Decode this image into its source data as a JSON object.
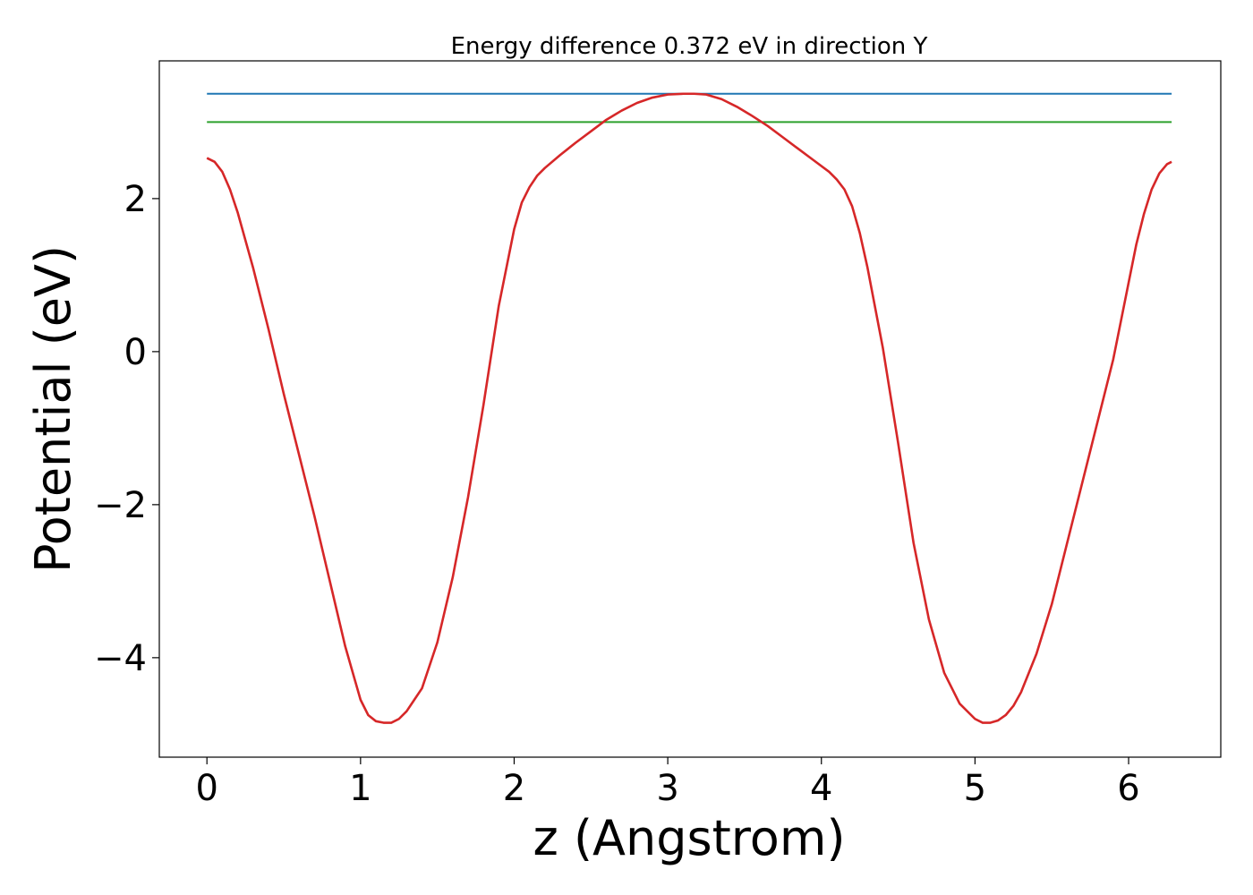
{
  "chart_data": {
    "type": "line",
    "title": "Energy difference 0.372 eV in direction Y",
    "xlabel": "z (Angstrom)",
    "ylabel": "Potential (eV)",
    "xlim": [
      -0.31,
      6.6
    ],
    "ylim": [
      -5.3,
      3.8
    ],
    "xticks": [
      0,
      1,
      2,
      3,
      4,
      5,
      6
    ],
    "yticks": [
      -4,
      -2,
      0,
      2
    ],
    "xtick_labels": [
      "0",
      "1",
      "2",
      "3",
      "4",
      "5",
      "6"
    ],
    "ytick_labels": [
      "−4",
      "−2",
      "0",
      "2"
    ],
    "grid": false,
    "series": [
      {
        "color": "#1f77b4",
        "x": [
          0,
          6.28
        ],
        "y": [
          3.37,
          3.37
        ]
      },
      {
        "color": "#2ca02c",
        "x": [
          0,
          6.28
        ],
        "y": [
          3.0,
          3.0
        ]
      },
      {
        "color": "#d62728",
        "x": [
          0.0,
          0.05,
          0.1,
          0.15,
          0.2,
          0.3,
          0.4,
          0.5,
          0.6,
          0.7,
          0.8,
          0.9,
          1.0,
          1.05,
          1.1,
          1.15,
          1.2,
          1.25,
          1.3,
          1.35,
          1.4,
          1.5,
          1.6,
          1.7,
          1.8,
          1.9,
          2.0,
          2.05,
          2.1,
          2.15,
          2.2,
          2.3,
          2.4,
          2.5,
          2.6,
          2.7,
          2.8,
          2.9,
          3.0,
          3.1,
          3.17,
          3.25,
          3.35,
          3.45,
          3.55,
          3.65,
          3.75,
          3.85,
          3.95,
          4.05,
          4.1,
          4.15,
          4.2,
          4.25,
          4.3,
          4.4,
          4.5,
          4.6,
          4.7,
          4.8,
          4.9,
          5.0,
          5.05,
          5.1,
          5.15,
          5.2,
          5.25,
          5.3,
          5.35,
          5.4,
          5.5,
          5.6,
          5.7,
          5.8,
          5.9,
          6.0,
          6.05,
          6.1,
          6.15,
          6.2,
          6.25,
          6.28
        ],
        "y": [
          2.53,
          2.48,
          2.35,
          2.12,
          1.82,
          1.1,
          0.3,
          -0.55,
          -1.35,
          -2.15,
          -3.0,
          -3.85,
          -4.55,
          -4.75,
          -4.83,
          -4.85,
          -4.85,
          -4.8,
          -4.7,
          -4.55,
          -4.4,
          -3.8,
          -2.95,
          -1.9,
          -0.7,
          0.6,
          1.6,
          1.95,
          2.15,
          2.3,
          2.4,
          2.57,
          2.73,
          2.88,
          3.03,
          3.15,
          3.25,
          3.32,
          3.36,
          3.37,
          3.37,
          3.36,
          3.3,
          3.2,
          3.08,
          2.95,
          2.8,
          2.65,
          2.5,
          2.35,
          2.25,
          2.12,
          1.9,
          1.55,
          1.1,
          0.05,
          -1.2,
          -2.5,
          -3.5,
          -4.2,
          -4.6,
          -4.8,
          -4.85,
          -4.85,
          -4.82,
          -4.75,
          -4.63,
          -4.45,
          -4.2,
          -3.95,
          -3.3,
          -2.5,
          -1.7,
          -0.9,
          -0.1,
          0.9,
          1.4,
          1.8,
          2.12,
          2.33,
          2.45,
          2.48
        ]
      }
    ]
  }
}
